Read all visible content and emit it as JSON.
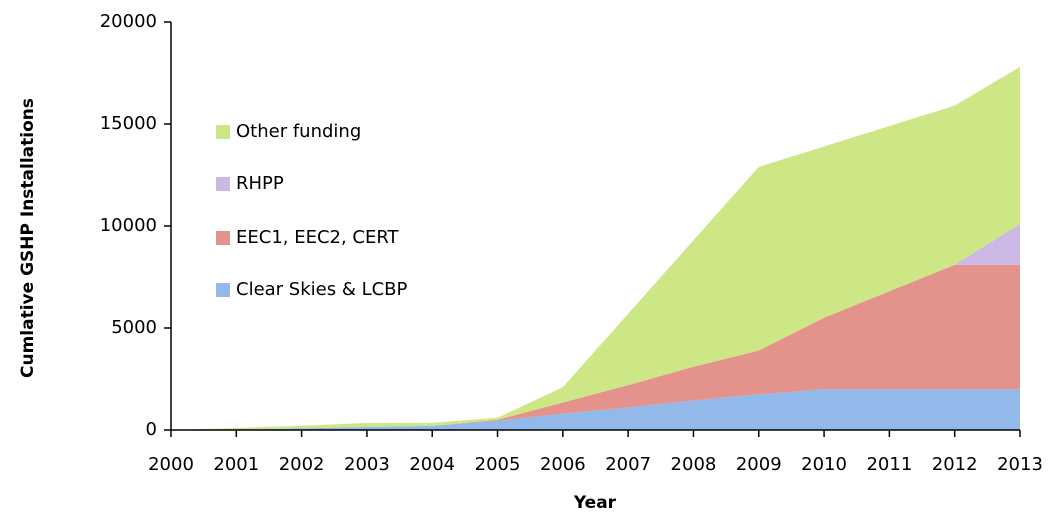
{
  "chart_data": {
    "type": "stacked_area",
    "x": [
      2000,
      2001,
      2002,
      2003,
      2004,
      2005,
      2006,
      2007,
      2008,
      2009,
      2010,
      2011,
      2012,
      2013
    ],
    "series": [
      {
        "name": "Clear Skies & LCBP",
        "color": "#93b9ea",
        "values": [
          0,
          20,
          80,
          150,
          200,
          450,
          800,
          1100,
          1450,
          1750,
          2000,
          2000,
          2000,
          2000
        ]
      },
      {
        "name": "EEC1, EEC2, CERT",
        "color": "#e3928c",
        "values": [
          0,
          0,
          0,
          0,
          0,
          50,
          550,
          1100,
          1650,
          2150,
          3500,
          4800,
          6100,
          6100
        ]
      },
      {
        "name": "RHPP",
        "color": "#cbb8e4",
        "values": [
          0,
          0,
          0,
          0,
          0,
          0,
          0,
          0,
          0,
          0,
          0,
          0,
          0,
          2000
        ]
      },
      {
        "name": "Other funding",
        "color": "#cde786",
        "values": [
          0,
          80,
          120,
          200,
          150,
          100,
          750,
          3500,
          6200,
          9000,
          8400,
          8100,
          7800,
          7700
        ]
      }
    ],
    "xlim": [
      2000,
      2013
    ],
    "xticks": [
      2000,
      2001,
      2002,
      2003,
      2004,
      2005,
      2006,
      2007,
      2008,
      2009,
      2010,
      2011,
      2012,
      2013
    ],
    "ylim": [
      0,
      20000
    ],
    "yticks": [
      0,
      5000,
      10000,
      15000,
      20000
    ],
    "xlabel": "Year",
    "ylabel": "Cumlative GSHP Installations"
  }
}
